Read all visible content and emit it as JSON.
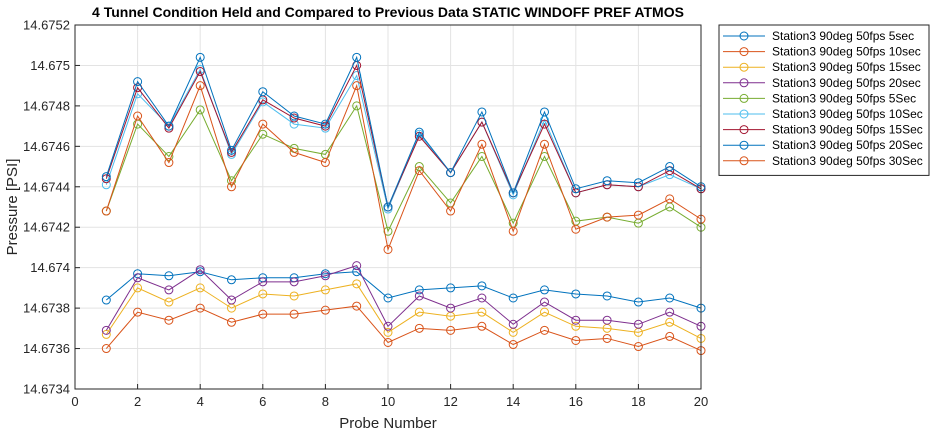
{
  "chart_data": {
    "type": "line",
    "title": "4 Tunnel Condition Held and Compared to Previous Data STATIC WINDOFF PREF ATMOS",
    "xlabel": "Probe Number",
    "ylabel": "Pressure [PSI]",
    "xlim": [
      0,
      20
    ],
    "ylim": [
      14.6734,
      14.6752
    ],
    "xticks": [
      "0",
      "2",
      "4",
      "6",
      "8",
      "10",
      "12",
      "14",
      "16",
      "18",
      "20"
    ],
    "yticks": [
      "14.6734",
      "14.6736",
      "14.6738",
      "14.674",
      "14.6742",
      "14.6744",
      "14.6746",
      "14.6748",
      "14.675",
      "14.6752"
    ],
    "grid": true,
    "marker": "circle",
    "legend_position": "outside-top-right",
    "x": [
      1,
      2,
      3,
      4,
      5,
      6,
      7,
      8,
      9,
      10,
      11,
      12,
      13,
      14,
      15,
      16,
      17,
      18,
      19,
      20
    ],
    "series": [
      {
        "name": "Station3 90deg 50fps 5sec",
        "color": "#0072BD",
        "values": [
          14.67384,
          14.67397,
          14.67396,
          14.67398,
          14.67394,
          14.67395,
          14.67395,
          14.67397,
          14.67398,
          14.67385,
          14.67389,
          14.6739,
          14.67391,
          14.67385,
          14.67389,
          14.67387,
          14.67386,
          14.67383,
          14.67385,
          14.6738
        ]
      },
      {
        "name": "Station3 90deg 50fps 10sec",
        "color": "#D95319",
        "values": [
          14.6736,
          14.67378,
          14.67374,
          14.6738,
          14.67373,
          14.67377,
          14.67377,
          14.67379,
          14.67381,
          14.67363,
          14.6737,
          14.67369,
          14.67371,
          14.67362,
          14.67369,
          14.67364,
          14.67365,
          14.67361,
          14.67366,
          14.67359
        ]
      },
      {
        "name": "Station3 90deg 50fps 15sec",
        "color": "#EDB120",
        "values": [
          14.67367,
          14.6739,
          14.67383,
          14.6739,
          14.6738,
          14.67387,
          14.67386,
          14.67389,
          14.67392,
          14.67368,
          14.67378,
          14.67376,
          14.67378,
          14.67368,
          14.67378,
          14.67371,
          14.6737,
          14.67368,
          14.67373,
          14.67365
        ]
      },
      {
        "name": "Station3 90deg 50fps 20sec",
        "color": "#7E2F8E",
        "values": [
          14.67369,
          14.67395,
          14.67389,
          14.67399,
          14.67384,
          14.67393,
          14.67393,
          14.67396,
          14.67401,
          14.67371,
          14.67386,
          14.6738,
          14.67385,
          14.67372,
          14.67383,
          14.67374,
          14.67374,
          14.67372,
          14.67378,
          14.67371
        ]
      },
      {
        "name": "Station3 90deg 50fps 5Sec",
        "color": "#77AC30",
        "values": [
          14.67428,
          14.67471,
          14.67455,
          14.67478,
          14.67443,
          14.67466,
          14.67459,
          14.67456,
          14.6748,
          14.67418,
          14.6745,
          14.67432,
          14.67455,
          14.67422,
          14.67455,
          14.67423,
          14.67425,
          14.67422,
          14.6743,
          14.6742
        ]
      },
      {
        "name": "Station3 90deg 50fps 10Sec",
        "color": "#4DBEEE",
        "values": [
          14.67441,
          14.67486,
          14.6747,
          14.67498,
          14.67456,
          14.67482,
          14.67471,
          14.67469,
          14.67495,
          14.67429,
          14.67466,
          14.67447,
          14.67472,
          14.67436,
          14.67473,
          14.67437,
          14.67441,
          14.6744,
          14.67446,
          14.67439
        ]
      },
      {
        "name": "Station3 90deg 50fps 15Sec",
        "color": "#A2142F",
        "values": [
          14.67444,
          14.67489,
          14.67469,
          14.67497,
          14.67457,
          14.67483,
          14.67474,
          14.6747,
          14.675,
          14.6743,
          14.67465,
          14.67447,
          14.67472,
          14.67437,
          14.67471,
          14.67437,
          14.67441,
          14.6744,
          14.67448,
          14.67439
        ]
      },
      {
        "name": "Station3 90deg 50fps 20Sec",
        "color": "#0072BD",
        "values": [
          14.67445,
          14.67492,
          14.6747,
          14.67504,
          14.67458,
          14.67487,
          14.67475,
          14.67471,
          14.67504,
          14.6743,
          14.67467,
          14.67447,
          14.67477,
          14.67437,
          14.67477,
          14.67439,
          14.67443,
          14.67442,
          14.6745,
          14.6744
        ]
      },
      {
        "name": "Station3 90deg 50fps 30Sec",
        "color": "#D95319",
        "values": [
          14.67428,
          14.67475,
          14.67452,
          14.6749,
          14.6744,
          14.67471,
          14.67457,
          14.67452,
          14.6749,
          14.67409,
          14.67448,
          14.67428,
          14.67461,
          14.67418,
          14.67461,
          14.67419,
          14.67425,
          14.67426,
          14.67434,
          14.67424
        ]
      }
    ]
  }
}
